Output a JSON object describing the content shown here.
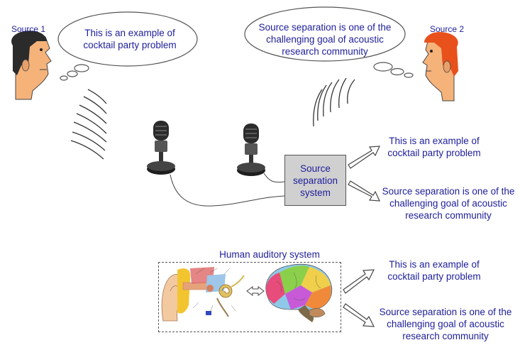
{
  "speakers": {
    "source1_label": "Source 1",
    "source2_label": "Source 2"
  },
  "speech": {
    "source1": "This is an example of cocktail party problem",
    "source2": "Source separation is one of the challenging goal of acoustic research community"
  },
  "system": {
    "box_label": "Source separation system"
  },
  "outputs": {
    "out1": "This is an example of cocktail party problem",
    "out2": "Source separation is one of the challenging goal of acoustic research community"
  },
  "human": {
    "title": "Human auditory system",
    "out1": "This is an example of cocktail party problem",
    "out2": "Source separation is one of the challenging goal of acoustic research community"
  },
  "colors": {
    "text": "#1e1e9a",
    "skin": "#f5b37a",
    "hair_dark": "#2b2b2b",
    "hair_red": "#e8501c",
    "box": "#d0d0d0"
  },
  "icons": [
    "face-icon",
    "microphone-icon",
    "arrow-icon",
    "ear-icon",
    "brain-icon"
  ]
}
